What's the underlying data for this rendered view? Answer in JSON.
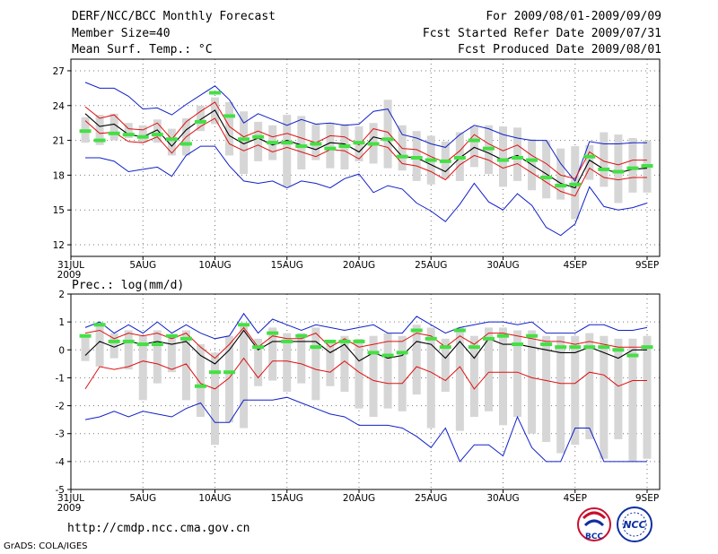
{
  "header": {
    "title": "DERF/NCC/BCC Monthly Forecast",
    "member_size": "Member Size=40",
    "for_period": "For 2009/08/01-2009/09/09",
    "fcst_started": "Fcst Started Refer Date 2009/07/31",
    "fcst_produced": "Fcst Produced Date 2009/08/01"
  },
  "footer": {
    "url": "http://cmdp.ncc.cma.gov.cn",
    "grads": "GrADS: COLA/IGES"
  },
  "logos": {
    "bcc": "BCC",
    "ncc": "NCC"
  },
  "colors": {
    "mean": "#000000",
    "spread": "#e01010",
    "extreme": "#1020c8",
    "box": "#d6d6d6",
    "obs": "#44e044"
  },
  "x_tick_labels": [
    "31JUL",
    "5AUG",
    "10AUG",
    "15AUG",
    "20AUG",
    "25AUG",
    "30AUG",
    "4SEP",
    "9SEP"
  ],
  "x_tick_days": [
    0,
    5,
    10,
    15,
    20,
    25,
    30,
    35,
    40
  ],
  "year_label": "2009",
  "chart_data": [
    {
      "type": "line",
      "title": "Mean Surf. Temp.: °C",
      "ylim": [
        11,
        28
      ],
      "yticks": [
        12,
        15,
        18,
        21,
        24,
        27
      ],
      "x": [
        1,
        2,
        3,
        4,
        5,
        6,
        7,
        8,
        9,
        10,
        11,
        12,
        13,
        14,
        15,
        16,
        17,
        18,
        19,
        20,
        21,
        22,
        23,
        24,
        25,
        26,
        27,
        28,
        29,
        30,
        31,
        32,
        33,
        34,
        35,
        36,
        37,
        38,
        39,
        40
      ],
      "series": [
        {
          "name": "max",
          "values": [
            26,
            25.5,
            25.5,
            24.8,
            23.7,
            23.8,
            23.2,
            24.1,
            24.9,
            25.7,
            24.5,
            22.5,
            23.3,
            22.8,
            22.3,
            22.8,
            22.4,
            22.5,
            22.3,
            22.4,
            23.5,
            23.7,
            21.5,
            21.2,
            20.7,
            20.4,
            21.5,
            22.3,
            22,
            21.5,
            21.2,
            21,
            21,
            19,
            17.5,
            20.9,
            20.7,
            20.7,
            20.8,
            20.8
          ]
        },
        {
          "name": "upper",
          "values": [
            23.9,
            22.9,
            23.2,
            22,
            21.9,
            22.5,
            21.1,
            22.6,
            23.5,
            24.3,
            22.2,
            21.3,
            21.8,
            21.3,
            21.6,
            21.2,
            20.8,
            21.4,
            21.3,
            20.6,
            22,
            21.7,
            20.3,
            20.2,
            19.6,
            19.1,
            20.1,
            21.5,
            20.7,
            20.1,
            20.6,
            19.7,
            19,
            18,
            17.7,
            20,
            19.2,
            18.9,
            19.3,
            19.3
          ]
        },
        {
          "name": "mean",
          "values": [
            23.3,
            22.2,
            22.4,
            21.5,
            21.3,
            21.9,
            20.5,
            21.9,
            22.8,
            23.6,
            21.4,
            20.7,
            21.2,
            20.6,
            21,
            20.6,
            20.2,
            20.8,
            20.7,
            20,
            21.3,
            21,
            19.6,
            19.5,
            18.9,
            18.3,
            19.5,
            20.4,
            19.9,
            19.3,
            19.7,
            18.9,
            18.1,
            17.3,
            16.9,
            19.3,
            18.5,
            18.2,
            18.5,
            18.6
          ]
        },
        {
          "name": "lower",
          "values": [
            22.7,
            21.6,
            21.7,
            20.9,
            20.8,
            21.3,
            19.9,
            21.3,
            22.2,
            22.9,
            20.7,
            20.1,
            20.6,
            20,
            20.4,
            20,
            19.6,
            20.2,
            20.1,
            19.4,
            20.7,
            20.4,
            19,
            18.8,
            18.3,
            17.6,
            18.9,
            19.7,
            19.3,
            18.6,
            19,
            18.2,
            17.4,
            16.6,
            16.2,
            18.6,
            17.8,
            17.6,
            17.8,
            17.8
          ]
        },
        {
          "name": "min",
          "values": [
            19.5,
            19.5,
            19.2,
            18.3,
            18.5,
            18.7,
            17.9,
            19.7,
            20.5,
            20.5,
            18.8,
            17.5,
            17.3,
            17.5,
            16.9,
            17.5,
            17.3,
            16.9,
            17.7,
            18.1,
            16.5,
            17.1,
            16.8,
            15.6,
            14.9,
            14,
            15.5,
            17.3,
            15.7,
            15,
            16.4,
            15.4,
            13.5,
            12.8,
            13.8,
            17,
            15.3,
            15,
            15.2,
            15.6
          ]
        },
        {
          "name": "obs",
          "values": [
            21.8,
            21,
            21.6,
            21.5,
            21.3,
            21.5,
            21.1,
            20.7,
            22.6,
            25.1,
            23.1,
            21.1,
            21.3,
            20.8,
            20.8,
            20.5,
            20.7,
            20.3,
            20.5,
            20.8,
            20.7,
            21.1,
            19.6,
            19.5,
            19.3,
            19.2,
            19.5,
            21,
            20.3,
            19.3,
            19.5,
            19.3,
            17.8,
            17.1,
            17.2,
            19.6,
            18.5,
            18.3,
            18.6,
            18.8
          ]
        }
      ],
      "box_hi": [
        23,
        23.2,
        23.3,
        22.5,
        22.3,
        22.8,
        22,
        22.9,
        24,
        24.7,
        24.3,
        23.5,
        22.6,
        22.3,
        23.2,
        23.1,
        22.4,
        22.5,
        22.4,
        22.2,
        22.5,
        24.5,
        22.3,
        21.8,
        21.4,
        20.9,
        21.7,
        22.2,
        22.3,
        22.2,
        22.1,
        21.1,
        21,
        20.3,
        20.5,
        20.6,
        21.7,
        21.5,
        21.2,
        21
      ],
      "box_lo": [
        20.8,
        20.6,
        21,
        21.2,
        20.8,
        20.8,
        19.7,
        19.7,
        21.8,
        22.4,
        19.7,
        18.1,
        19.2,
        19.3,
        17,
        18.5,
        19.3,
        18.6,
        18.5,
        19.2,
        19,
        18.6,
        18.4,
        17.5,
        17.2,
        17.7,
        17.5,
        18.7,
        18.1,
        17,
        17.5,
        16.7,
        16,
        15.9,
        14.2,
        17.6,
        17,
        15.6,
        16.5,
        16.5
      ]
    },
    {
      "type": "line",
      "title": "Prec.: log(mm/d)",
      "ylim": [
        -5,
        2
      ],
      "yticks": [
        -5,
        -4,
        -3,
        -2,
        -1,
        0,
        1,
        2
      ],
      "x": [
        1,
        2,
        3,
        4,
        5,
        6,
        7,
        8,
        9,
        10,
        11,
        12,
        13,
        14,
        15,
        16,
        17,
        18,
        19,
        20,
        21,
        22,
        23,
        24,
        25,
        26,
        27,
        28,
        29,
        30,
        31,
        32,
        33,
        34,
        35,
        36,
        37,
        38,
        39,
        40
      ],
      "series": [
        {
          "name": "max",
          "values": [
            0.8,
            1,
            0.6,
            0.9,
            0.6,
            1,
            0.6,
            0.9,
            0.6,
            0.4,
            0.5,
            1.3,
            0.6,
            1.1,
            0.9,
            0.7,
            0.9,
            0.8,
            0.7,
            0.8,
            0.9,
            0.6,
            0.6,
            1.2,
            0.9,
            0.6,
            0.8,
            0.9,
            1,
            1,
            0.9,
            1,
            0.6,
            0.6,
            0.6,
            0.9,
            0.9,
            0.7,
            0.7,
            0.8
          ]
        },
        {
          "name": "upper",
          "values": [
            0.6,
            0.7,
            0.4,
            0.6,
            0.5,
            0.6,
            0.4,
            0.6,
            0.1,
            -0.3,
            0.2,
            0.8,
            0.1,
            0.5,
            0.4,
            0.4,
            0.6,
            0.1,
            0.4,
            0.1,
            0.2,
            0.3,
            0.3,
            0.6,
            0.5,
            0.1,
            0.5,
            0.2,
            0.6,
            0.6,
            0.5,
            0.4,
            0.3,
            0.3,
            0.2,
            0.3,
            0.2,
            0.1,
            0.1,
            0.1
          ]
        },
        {
          "name": "mean",
          "values": [
            -0.2,
            0.3,
            0.1,
            0.3,
            0.2,
            0.3,
            0.2,
            0.3,
            -0.2,
            -0.5,
            0,
            0.7,
            0,
            0.3,
            0.3,
            0.3,
            0.3,
            -0.1,
            0.2,
            -0.4,
            -0.1,
            -0.3,
            -0.2,
            0.3,
            0.2,
            -0.3,
            0.3,
            -0.3,
            0.4,
            0.2,
            0.2,
            0.1,
            0,
            -0.1,
            -0.1,
            0.1,
            -0.1,
            -0.3,
            0,
            0
          ]
        },
        {
          "name": "lower",
          "values": [
            -1.4,
            -0.6,
            -0.7,
            -0.6,
            -0.4,
            -0.5,
            -0.7,
            -0.5,
            -1.2,
            -1.4,
            -1,
            -0.3,
            -1,
            -0.4,
            -0.4,
            -0.5,
            -0.7,
            -0.8,
            -0.4,
            -0.8,
            -1.1,
            -1.2,
            -1.2,
            -0.6,
            -0.8,
            -1.1,
            -0.6,
            -1.4,
            -0.8,
            -0.8,
            -0.8,
            -1,
            -1.1,
            -1.2,
            -1.2,
            -0.8,
            -0.9,
            -1.3,
            -1.1,
            -1.1
          ]
        },
        {
          "name": "min",
          "values": [
            -2.5,
            -2.4,
            -2.2,
            -2.4,
            -2.2,
            -2.3,
            -2.4,
            -2.1,
            -1.9,
            -2.6,
            -2.6,
            -1.8,
            -1.8,
            -1.8,
            -1.7,
            -1.9,
            -2.1,
            -2.3,
            -2.4,
            -2.7,
            -2.7,
            -2.7,
            -2.8,
            -3.1,
            -3.5,
            -2.8,
            -4,
            -3.4,
            -3.4,
            -3.8,
            -2.4,
            -3.5,
            -4,
            -4,
            -2.8,
            -2.8,
            -4,
            -4,
            -4,
            -4
          ]
        },
        {
          "name": "obs",
          "values": [
            0.5,
            0.9,
            0.3,
            0.3,
            0.2,
            0.2,
            0.5,
            0.4,
            -1.3,
            -0.8,
            -0.8,
            0.9,
            0.1,
            0.6,
            0.3,
            0.5,
            0.1,
            0.3,
            0.3,
            0.3,
            -0.1,
            -0.2,
            -0.1,
            0.7,
            0.4,
            0.1,
            0.7,
            0.1,
            0.4,
            0.5,
            0.2,
            0.5,
            0.2,
            0.1,
            0.1,
            0.1,
            0.1,
            0,
            -0.2,
            0.1
          ]
        }
      ],
      "box_hi": [
        0.5,
        0.9,
        0.6,
        0.7,
        0.5,
        0.7,
        0.5,
        0.7,
        0.2,
        -0.1,
        0.5,
        0.9,
        0.4,
        0.8,
        0.6,
        0.6,
        0.8,
        0.3,
        0.5,
        0.4,
        0.5,
        0.6,
        0.5,
        0.9,
        0.8,
        0.4,
        0.8,
        0.5,
        0.8,
        0.8,
        0.7,
        0.7,
        0.5,
        0.5,
        0.5,
        0.6,
        0.5,
        0.4,
        0.4,
        0.5
      ],
      "box_lo": [
        -0.4,
        -0.6,
        -0.3,
        -0.7,
        -1.8,
        -1.2,
        -0.8,
        -1.8,
        -2.4,
        -3.4,
        -2.6,
        -2.8,
        -1.3,
        -1.1,
        -1.5,
        -1.2,
        -1.8,
        -1.3,
        -1.5,
        -2.1,
        -2.4,
        -2.1,
        -2.2,
        -1.6,
        -2.8,
        -1.5,
        -2.9,
        -2.4,
        -2.2,
        -2.7,
        -2.4,
        -3,
        -3.3,
        -3.7,
        -3.4,
        -3.2,
        -3.9,
        -3.2,
        -4,
        -3.9
      ]
    }
  ]
}
